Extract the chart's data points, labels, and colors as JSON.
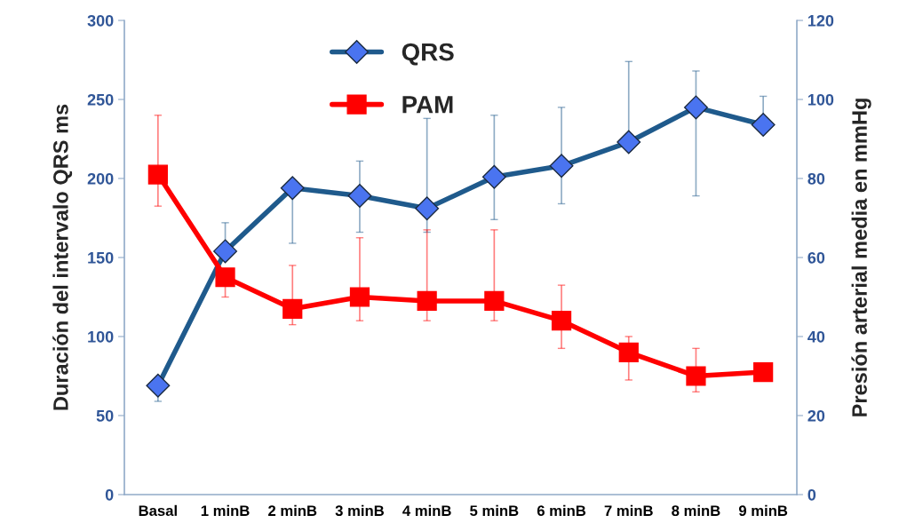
{
  "chart_data": {
    "type": "line",
    "ylabel": "Duración del intervalo QRS ms",
    "y2label": "Presión arterial media en mmHg",
    "categories": [
      "Basal",
      "1 minB",
      "2 minB",
      "3 minB",
      "4 minB",
      "5 minB",
      "6 minB",
      "7 minB",
      "8 minB",
      "9 minB"
    ],
    "series": [
      {
        "name": "QRS",
        "color": "#1f5a8c",
        "marker": "diamond",
        "values": [
          69,
          154,
          194,
          189,
          181,
          201,
          208,
          223,
          245,
          234
        ],
        "errors": [
          [
            59,
            69
          ],
          [
            154,
            172
          ],
          [
            159,
            194
          ],
          [
            166,
            211
          ],
          [
            166,
            238
          ],
          [
            174,
            240
          ],
          [
            184,
            245
          ],
          [
            223,
            274
          ],
          [
            189,
            268
          ],
          [
            234,
            252
          ]
        ]
      },
      {
        "name": "PAM",
        "color": "#ff0000",
        "marker": "square",
        "axis": "y2",
        "values": [
          81,
          55,
          47,
          50,
          49,
          49,
          44,
          36,
          30,
          31
        ],
        "errors": [
          [
            73,
            96
          ],
          [
            50,
            55
          ],
          [
            43,
            58
          ],
          [
            44,
            65
          ],
          [
            44,
            67
          ],
          [
            44,
            67
          ],
          [
            37,
            53
          ],
          [
            29,
            40
          ],
          [
            26,
            37
          ],
          null
        ]
      }
    ],
    "ylim": [
      0,
      300
    ],
    "yticks": [
      0,
      50,
      100,
      150,
      200,
      250,
      300
    ],
    "y2lim": [
      0,
      120
    ],
    "y2ticks": [
      0,
      20,
      40,
      60,
      80,
      100,
      120
    ],
    "legend": "top",
    "grid": false
  }
}
